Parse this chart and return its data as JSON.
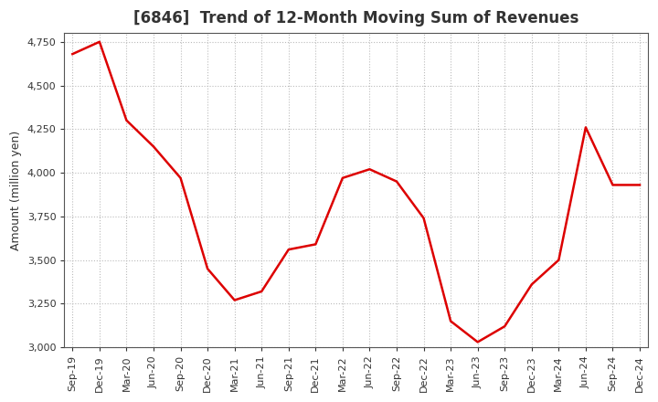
{
  "title": "[6846]  Trend of 12-Month Moving Sum of Revenues",
  "ylabel": "Amount (million yen)",
  "background_color": "#ffffff",
  "grid_color": "#bbbbbb",
  "line_color": "#dd0000",
  "labels": [
    "Sep-19",
    "Dec-19",
    "Mar-20",
    "Jun-20",
    "Sep-20",
    "Dec-20",
    "Mar-21",
    "Jun-21",
    "Sep-21",
    "Dec-21",
    "Mar-22",
    "Jun-22",
    "Sep-22",
    "Dec-22",
    "Mar-23",
    "Jun-23",
    "Sep-23",
    "Dec-23",
    "Mar-24",
    "Jun-24",
    "Sep-24",
    "Dec-24"
  ],
  "values": [
    4680,
    4750,
    4300,
    4150,
    3970,
    3450,
    3270,
    3320,
    3560,
    3590,
    3970,
    4020,
    3950,
    3740,
    3150,
    3030,
    3120,
    3360,
    3500,
    4260,
    3930,
    3930
  ],
  "ylim": [
    3000,
    4800
  ],
  "yticks": [
    3000,
    3250,
    3500,
    3750,
    4000,
    4250,
    4500,
    4750
  ],
  "title_fontsize": 12,
  "title_color": "#333333",
  "label_fontsize": 9,
  "tick_fontsize": 8,
  "line_width": 1.8
}
